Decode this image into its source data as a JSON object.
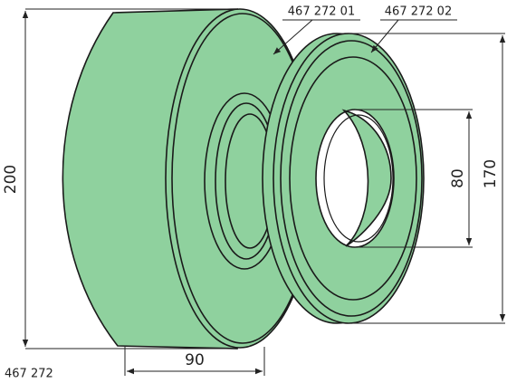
{
  "parts": {
    "tire": "467 272 01",
    "flange": "467 272 02",
    "assembly": "467 272"
  },
  "dimensions": {
    "outer_diameter": 200,
    "flange_diameter": 170,
    "bore_diameter": 80,
    "width": 90
  }
}
